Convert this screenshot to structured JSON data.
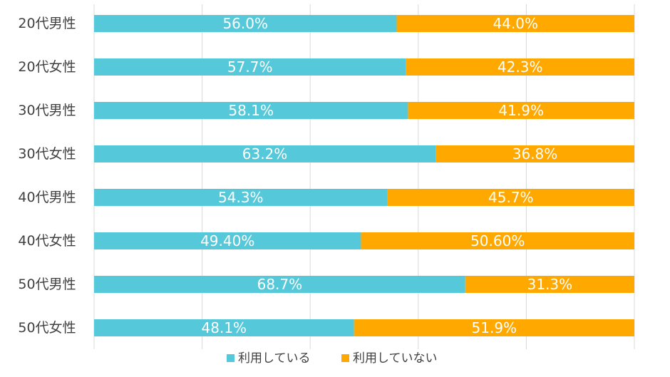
{
  "chart_data": {
    "type": "bar",
    "orientation": "horizontal",
    "stacked": "percent",
    "categories": [
      "20代男性",
      "20代女性",
      "30代男性",
      "30代女性",
      "40代男性",
      "40代女性",
      "50代男性",
      "50代女性"
    ],
    "series": [
      {
        "name": "利用している",
        "color": "#55C8DA",
        "values": [
          56.0,
          57.7,
          58.1,
          63.2,
          54.3,
          49.4,
          68.7,
          48.1
        ],
        "labels": [
          "56.0%",
          "57.7%",
          "58.1%",
          "63.2%",
          "54.3%",
          "49.40%",
          "68.7%",
          "48.1%"
        ]
      },
      {
        "name": "利用していない",
        "color": "#FFA800",
        "values": [
          44.0,
          42.3,
          41.9,
          36.8,
          45.7,
          50.6,
          31.3,
          51.9
        ],
        "labels": [
          "44.0%",
          "42.3%",
          "41.9%",
          "36.8%",
          "45.7%",
          "50.60%",
          "31.3%",
          "51.9%"
        ]
      }
    ],
    "xlim": [
      0,
      100
    ],
    "grid": true,
    "legend": "bottom"
  }
}
